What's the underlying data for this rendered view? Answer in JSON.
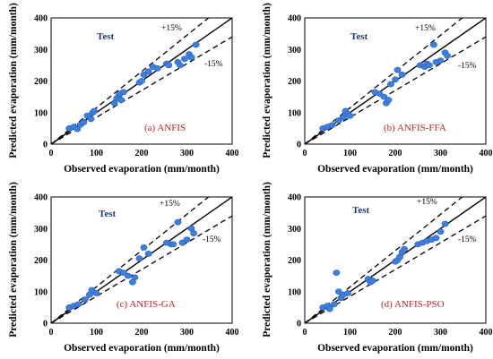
{
  "chart_data": [
    {
      "type": "scatter",
      "title": "(a) ANFIS",
      "annotation": "Test",
      "band_labels": {
        "upper": "+15%",
        "lower": "-15%"
      },
      "xlabel": "Observed evaporation (mm/month)",
      "ylabel": "Predicted evaporation (mm/month)",
      "xlim": [
        0,
        400
      ],
      "ylim": [
        0,
        400
      ],
      "xticks": [
        "0",
        "100",
        "200",
        "300",
        "400"
      ],
      "yticks": [
        "0",
        "100",
        "200",
        "300",
        "400"
      ],
      "colors": {
        "points": "#3d7fe0",
        "lines": "#000000",
        "label": "#c0252b",
        "test": "#1f3a7a"
      },
      "x": [
        40,
        50,
        58,
        65,
        72,
        80,
        88,
        92,
        95,
        140,
        145,
        150,
        152,
        155,
        160,
        195,
        200,
        205,
        215,
        225,
        235,
        255,
        260,
        280,
        285,
        295,
        305,
        310,
        320
      ],
      "y": [
        50,
        55,
        48,
        62,
        70,
        90,
        80,
        100,
        105,
        130,
        145,
        155,
        160,
        140,
        165,
        195,
        200,
        220,
        230,
        245,
        240,
        255,
        250,
        260,
        250,
        270,
        285,
        275,
        315
      ]
    },
    {
      "type": "scatter",
      "title": "(b) ANFIS-FFA",
      "annotation": "Test",
      "band_labels": {
        "upper": "+15%",
        "lower": "-15%"
      },
      "xlabel": "Observed evaporation (mm/month)",
      "ylabel": "Predicted evaporation (mm/month)",
      "xlim": [
        0,
        400
      ],
      "ylim": [
        0,
        400
      ],
      "xticks": [
        "0",
        "100",
        "200",
        "300",
        "400"
      ],
      "yticks": [
        "0",
        "100",
        "200",
        "300",
        "400"
      ],
      "colors": {
        "points": "#3d7fe0",
        "lines": "#000000",
        "label": "#c0252b",
        "test": "#1f3a7a"
      },
      "x": [
        40,
        50,
        60,
        75,
        85,
        90,
        95,
        100,
        155,
        165,
        175,
        180,
        185,
        190,
        200,
        205,
        215,
        255,
        265,
        270,
        275,
        285,
        290,
        300,
        310,
        315
      ],
      "y": [
        50,
        55,
        60,
        75,
        85,
        105,
        95,
        90,
        165,
        160,
        150,
        130,
        140,
        190,
        205,
        235,
        220,
        250,
        245,
        255,
        250,
        315,
        260,
        265,
        290,
        280
      ]
    },
    {
      "type": "scatter",
      "title": "(c) ANFIS-GA",
      "annotation": "Test",
      "band_labels": {
        "upper": "+15%",
        "lower": "-15%"
      },
      "xlabel": "Observed evaporation (mm/month)",
      "ylabel": "Predicted evaporation (mm/month)",
      "xlim": [
        0,
        400
      ],
      "ylim": [
        0,
        400
      ],
      "xticks": [
        "0",
        "100",
        "200",
        "300",
        "400"
      ],
      "yticks": [
        "0",
        "100",
        "200",
        "300",
        "400"
      ],
      "colors": {
        "points": "#3d7fe0",
        "lines": "#000000",
        "label": "#c0252b",
        "test": "#1f3a7a"
      },
      "x": [
        40,
        50,
        60,
        75,
        85,
        90,
        100,
        150,
        160,
        170,
        180,
        185,
        195,
        205,
        215,
        255,
        265,
        270,
        280,
        290,
        300,
        310,
        315
      ],
      "y": [
        50,
        55,
        60,
        75,
        90,
        105,
        95,
        165,
        160,
        150,
        130,
        145,
        205,
        240,
        220,
        255,
        250,
        250,
        320,
        255,
        265,
        300,
        285
      ]
    },
    {
      "type": "scatter",
      "title": "(d) ANFIS-PSO",
      "annotation": "Test",
      "band_labels": {
        "upper": "+15%",
        "lower": "-15%"
      },
      "xlabel": "Observed evaporation (mm/month)",
      "ylabel": "Predicted evaporation (mm/month)",
      "xlim": [
        0,
        400
      ],
      "ylim": [
        0,
        400
      ],
      "xticks": [
        "0",
        "100",
        "200",
        "300",
        "400"
      ],
      "yticks": [
        "0",
        "100",
        "200",
        "300",
        "400"
      ],
      "colors": {
        "points": "#3d7fe0",
        "lines": "#000000",
        "label": "#c0252b",
        "test": "#1f3a7a"
      },
      "x": [
        40,
        50,
        55,
        65,
        70,
        75,
        80,
        85,
        95,
        140,
        145,
        150,
        200,
        205,
        210,
        215,
        220,
        250,
        260,
        270,
        280,
        290,
        300,
        310
      ],
      "y": [
        50,
        55,
        45,
        60,
        160,
        100,
        80,
        90,
        95,
        140,
        130,
        135,
        195,
        200,
        210,
        225,
        235,
        250,
        255,
        260,
        265,
        270,
        290,
        315
      ]
    }
  ]
}
